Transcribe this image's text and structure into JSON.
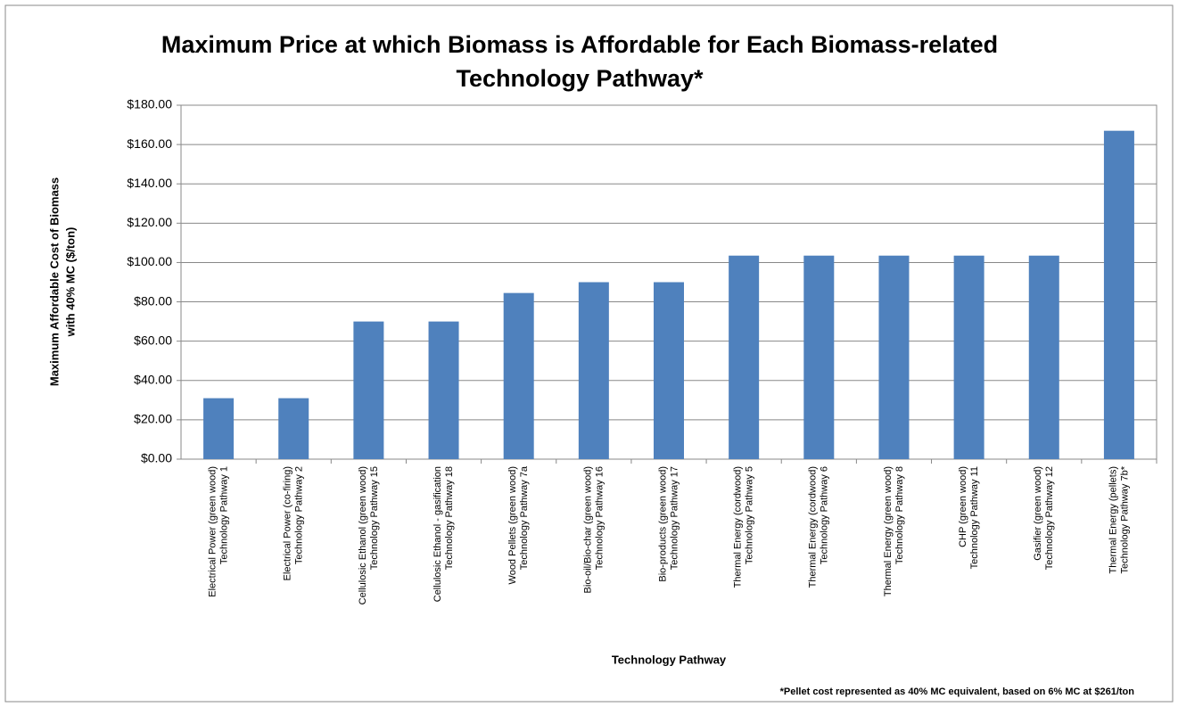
{
  "chart_data": {
    "type": "bar",
    "title": [
      "Maximum Price at which Biomass is Affordable for Each Biomass-related",
      "Technology Pathway*"
    ],
    "y_label": [
      "Maximum Affordable  Cost of Biomass",
      "with 40% MC ($/ton)"
    ],
    "x_label": "Technology Pathway",
    "annotation": "*Pellet cost represented as 40% MC equivalent, based on 6% MC at $261/ton",
    "categories": [
      [
        "Electrical Power (green wood)",
        "Technology Pathway 1"
      ],
      [
        "Electrical Power (co-firing)",
        "Technology Pathway 2"
      ],
      [
        "Cellulosic Ethanol (green wood)",
        "Technology Pathway 15"
      ],
      [
        "Cellulosic Ethanol - gasification",
        "Technology Pathway 18"
      ],
      [
        "Wood Pellets (green wood)",
        "Technology Pathway 7a"
      ],
      [
        "Bio-oil/Bio-char (green wood)",
        "Technology Pathway 16"
      ],
      [
        "Bio-products (green wood)",
        "Technology Pathway 17"
      ],
      [
        "Thermal Energy (cordwood)",
        "Technology Pathway 5"
      ],
      [
        "Thermal Energy (cordwood)",
        "Technology Pathway 6"
      ],
      [
        "Thermal Energy (green wood)",
        "Technology Pathway 8"
      ],
      [
        "CHP (green wood)",
        "Technology Pathway 11"
      ],
      [
        "Gasifier (green wood)",
        "Technology Pathway 12"
      ],
      [
        "Thermal Energy (pellets)",
        "Technology Pathway 7b*"
      ]
    ],
    "values": [
      31,
      31,
      70,
      70,
      84.5,
      90,
      90,
      103.5,
      103.5,
      103.5,
      103.5,
      103.5,
      167
    ],
    "color": "#4f81bd",
    "ylim": [
      0,
      180
    ],
    "yticks": [
      {
        "value": 0,
        "label": "$0.00"
      },
      {
        "value": 20,
        "label": "$20.00"
      },
      {
        "value": 40,
        "label": "$40.00"
      },
      {
        "value": 60,
        "label": "$60.00"
      },
      {
        "value": 80,
        "label": "$80.00"
      },
      {
        "value": 100,
        "label": "$100.00"
      },
      {
        "value": 120,
        "label": "$120.00"
      },
      {
        "value": 140,
        "label": "$140.00"
      },
      {
        "value": 160,
        "label": "$160.00"
      },
      {
        "value": 180,
        "label": "$180.00"
      }
    ],
    "grid": true
  }
}
